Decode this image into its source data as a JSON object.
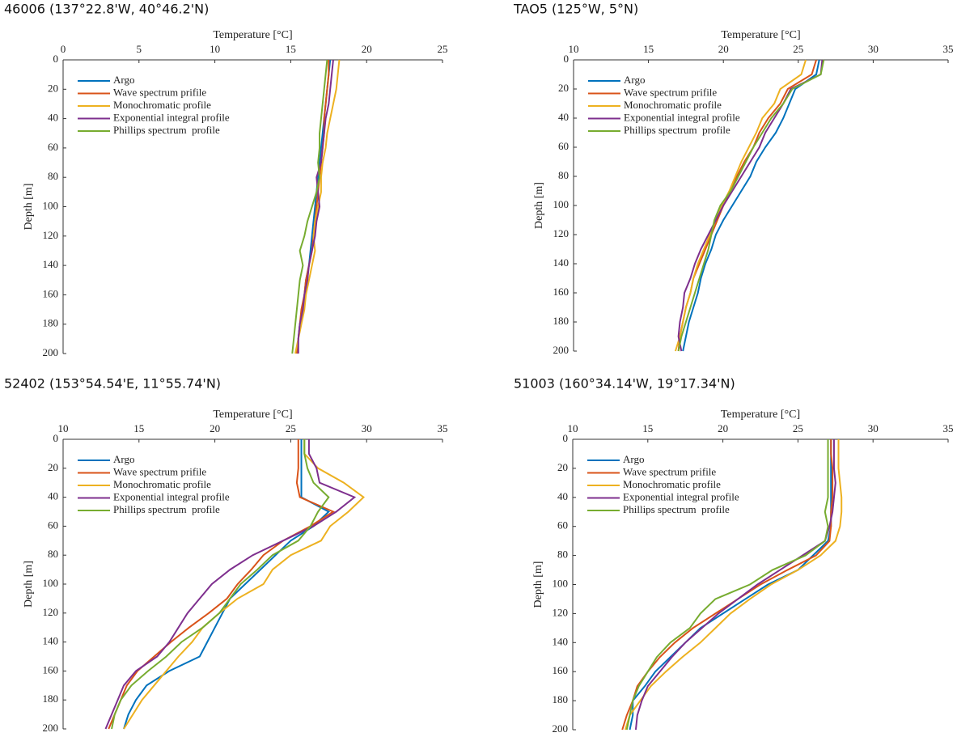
{
  "chart_data": [
    {
      "type": "line",
      "title": "46006 (137°22.8'W, 40°46.2'N)",
      "xlabel": "Temperature [°C]",
      "ylabel": "Depth [m]",
      "xlim": [
        0,
        25
      ],
      "xticks": [
        0,
        5,
        10,
        15,
        20,
        25
      ],
      "xaxis_position": "top",
      "ylim": [
        0,
        200
      ],
      "yticks": [
        0,
        20,
        40,
        60,
        80,
        100,
        120,
        140,
        160,
        180,
        200
      ],
      "y_inverted": true,
      "legend": "upper left",
      "y": [
        0,
        10,
        20,
        30,
        40,
        50,
        60,
        70,
        80,
        90,
        100,
        110,
        120,
        130,
        140,
        150,
        160,
        170,
        180,
        190,
        200
      ],
      "series": [
        {
          "name": "Argo",
          "color": "#0072bd",
          "values": [
            17.6,
            17.5,
            17.4,
            17.3,
            17.2,
            17.1,
            17.0,
            16.9,
            16.8,
            16.7,
            16.6,
            16.5,
            16.4,
            16.3,
            16.2,
            16.0,
            15.9,
            15.8,
            15.6,
            15.5,
            15.4
          ]
        },
        {
          "name": "Wave spectrum prifile",
          "color": "#d95319",
          "values": [
            17.5,
            17.5,
            17.4,
            17.3,
            17.2,
            17.2,
            17.1,
            17.0,
            16.9,
            16.8,
            16.7,
            16.6,
            16.5,
            16.4,
            16.2,
            16.0,
            15.9,
            15.7,
            15.6,
            15.5,
            15.4
          ]
        },
        {
          "name": "Monochromatic profile",
          "color": "#edb120",
          "values": [
            18.2,
            18.1,
            18.0,
            17.8,
            17.6,
            17.4,
            17.3,
            17.1,
            17.0,
            17.0,
            16.8,
            16.6,
            16.5,
            16.6,
            16.4,
            16.2,
            16.0,
            15.9,
            15.7,
            15.5,
            15.3
          ]
        },
        {
          "name": "Exponential integral profile",
          "color": "#7e2f8e",
          "values": [
            17.8,
            17.7,
            17.6,
            17.5,
            17.3,
            17.2,
            17.1,
            17.0,
            16.7,
            16.8,
            16.9,
            16.7,
            16.6,
            16.4,
            16.2,
            16.1,
            15.9,
            15.8,
            15.6,
            15.5,
            15.5
          ]
        },
        {
          "name": "Phillips spectrum  profile",
          "color": "#77ac30",
          "values": [
            17.4,
            17.3,
            17.2,
            17.1,
            17.0,
            16.9,
            16.9,
            16.8,
            16.9,
            16.7,
            16.4,
            16.1,
            15.9,
            15.6,
            15.8,
            15.6,
            15.5,
            15.4,
            15.3,
            15.2,
            15.1
          ]
        }
      ]
    },
    {
      "type": "line",
      "title": "TAO5 (125°W, 5°N)",
      "xlabel": "Temperature [°C]",
      "ylabel": "Depth [m]",
      "xlim": [
        10,
        35
      ],
      "xticks": [
        10,
        15,
        20,
        25,
        30,
        35
      ],
      "xaxis_position": "top",
      "ylim": [
        0,
        200
      ],
      "yticks": [
        0,
        20,
        40,
        60,
        80,
        100,
        120,
        140,
        160,
        180,
        200
      ],
      "y_inverted": true,
      "legend": "upper left",
      "y": [
        0,
        10,
        20,
        30,
        40,
        50,
        60,
        70,
        80,
        90,
        100,
        110,
        120,
        130,
        140,
        150,
        160,
        170,
        180,
        190,
        200
      ],
      "series": [
        {
          "name": "Argo",
          "color": "#0072bd",
          "values": [
            26.4,
            26.2,
            24.8,
            24.4,
            24.0,
            23.5,
            22.8,
            22.2,
            21.8,
            21.2,
            20.6,
            20.0,
            19.5,
            19.2,
            18.8,
            18.5,
            18.3,
            18.0,
            17.7,
            17.5,
            17.3
          ]
        },
        {
          "name": "Wave spectrum prifile",
          "color": "#d95319",
          "values": [
            26.2,
            25.9,
            24.3,
            23.8,
            23.0,
            22.4,
            22.0,
            21.4,
            20.9,
            20.5,
            20.0,
            19.6,
            19.2,
            18.8,
            18.4,
            18.0,
            17.8,
            17.5,
            17.3,
            17.1,
            17.0
          ]
        },
        {
          "name": "Monochromatic profile",
          "color": "#edb120",
          "values": [
            25.5,
            25.2,
            23.8,
            23.4,
            22.6,
            22.2,
            21.7,
            21.2,
            20.8,
            20.4,
            19.9,
            19.5,
            19.1,
            18.7,
            18.3,
            18.0,
            17.8,
            17.5,
            17.3,
            17.1,
            16.8
          ]
        },
        {
          "name": "Exponential integral profile",
          "color": "#7e2f8e",
          "values": [
            26.6,
            26.5,
            24.5,
            24.0,
            23.4,
            22.8,
            22.4,
            21.8,
            21.2,
            20.6,
            20.0,
            19.5,
            19.0,
            18.5,
            18.1,
            17.8,
            17.4,
            17.3,
            17.1,
            17.0,
            17.2
          ]
        },
        {
          "name": "Phillips spectrum  profile",
          "color": "#77ac30",
          "values": [
            26.7,
            26.5,
            24.6,
            24.0,
            23.2,
            22.6,
            22.0,
            21.5,
            21.0,
            20.5,
            19.8,
            19.4,
            19.2,
            19.0,
            18.7,
            18.4,
            18.1,
            17.8,
            17.5,
            17.2,
            17.0
          ]
        }
      ]
    },
    {
      "type": "line",
      "title": "52402 (153°54.54'E, 11°55.74'N)",
      "xlabel": "Temperature [°C]",
      "ylabel": "Depth [m]",
      "xlim": [
        10,
        35
      ],
      "xticks": [
        10,
        15,
        20,
        25,
        30,
        35
      ],
      "xaxis_position": "top",
      "ylim": [
        0,
        200
      ],
      "yticks": [
        0,
        20,
        40,
        60,
        80,
        100,
        120,
        140,
        160,
        180,
        200
      ],
      "y_inverted": true,
      "legend": "upper left",
      "y": [
        0,
        10,
        20,
        30,
        40,
        50,
        60,
        70,
        80,
        90,
        100,
        110,
        120,
        130,
        140,
        150,
        160,
        170,
        180,
        190,
        200
      ],
      "series": [
        {
          "name": "Argo",
          "color": "#0072bd",
          "values": [
            25.7,
            25.7,
            25.7,
            25.7,
            25.7,
            27.5,
            26.5,
            25.0,
            24.0,
            23.0,
            22.0,
            21.0,
            20.5,
            20.0,
            19.5,
            19.0,
            17.0,
            15.5,
            14.8,
            14.3,
            14.0
          ]
        },
        {
          "name": "Wave spectrum prifile",
          "color": "#d95319",
          "values": [
            25.5,
            25.5,
            25.5,
            25.4,
            25.6,
            27.8,
            26.3,
            24.5,
            23.2,
            22.4,
            21.5,
            20.8,
            19.6,
            18.3,
            17.1,
            16.0,
            14.9,
            14.2,
            13.8,
            13.4,
            13.0
          ]
        },
        {
          "name": "Monochromatic profile",
          "color": "#edb120",
          "values": [
            25.9,
            25.9,
            26.8,
            28.5,
            29.8,
            28.8,
            27.6,
            27.0,
            25.0,
            23.8,
            23.2,
            21.5,
            20.3,
            19.2,
            18.5,
            17.6,
            16.8,
            16.0,
            15.2,
            14.6,
            14.0
          ]
        },
        {
          "name": "Exponential integral profile",
          "color": "#7e2f8e",
          "values": [
            26.2,
            26.2,
            26.7,
            26.9,
            29.2,
            28.0,
            26.5,
            24.5,
            22.5,
            21.0,
            19.8,
            19.0,
            18.2,
            17.6,
            17.0,
            16.2,
            14.8,
            14.0,
            13.6,
            13.2,
            12.8
          ]
        },
        {
          "name": "Phillips spectrum  profile",
          "color": "#77ac30",
          "values": [
            25.9,
            25.9,
            26.1,
            26.5,
            27.5,
            26.8,
            26.3,
            25.5,
            23.8,
            22.8,
            21.7,
            21.0,
            20.3,
            19.2,
            17.8,
            16.8,
            15.6,
            14.5,
            13.8,
            13.4,
            13.2
          ]
        }
      ]
    },
    {
      "type": "line",
      "title": "51003 (160°34.14'W, 19°17.34'N)",
      "xlabel": "Temperature [°C]",
      "ylabel": "Depth [m]",
      "xlim": [
        10,
        35
      ],
      "xticks": [
        10,
        15,
        20,
        25,
        30,
        35
      ],
      "xaxis_position": "top",
      "ylim": [
        0,
        200
      ],
      "yticks": [
        0,
        20,
        40,
        60,
        80,
        100,
        120,
        140,
        160,
        180,
        200
      ],
      "y_inverted": true,
      "legend": "upper left",
      "y": [
        0,
        10,
        20,
        30,
        40,
        50,
        60,
        70,
        80,
        90,
        100,
        110,
        120,
        130,
        140,
        150,
        160,
        170,
        180,
        190,
        200
      ],
      "series": [
        {
          "name": "Argo",
          "color": "#0072bd",
          "values": [
            27.2,
            27.2,
            27.2,
            27.2,
            27.2,
            27.2,
            27.2,
            27.0,
            26.0,
            25.0,
            23.0,
            21.5,
            20.0,
            18.5,
            17.5,
            16.5,
            15.5,
            14.8,
            14.0,
            14.0,
            13.8
          ]
        },
        {
          "name": "Wave spectrum prifile",
          "color": "#d95319",
          "values": [
            27.2,
            27.2,
            27.3,
            27.3,
            27.3,
            27.2,
            27.2,
            27.1,
            26.2,
            24.3,
            22.5,
            21.0,
            19.5,
            18.0,
            16.8,
            15.8,
            15.0,
            14.3,
            14.0,
            13.6,
            13.3
          ]
        },
        {
          "name": "Monochromatic profile",
          "color": "#edb120",
          "values": [
            27.7,
            27.7,
            27.7,
            27.8,
            27.9,
            27.9,
            27.8,
            27.5,
            26.5,
            25.0,
            23.2,
            21.8,
            20.5,
            19.5,
            18.5,
            17.3,
            16.2,
            15.2,
            14.5,
            13.8,
            13.5
          ]
        },
        {
          "name": "Exponential integral profile",
          "color": "#7e2f8e",
          "values": [
            27.4,
            27.4,
            27.4,
            27.5,
            27.4,
            27.3,
            27.1,
            26.8,
            25.3,
            23.8,
            22.3,
            21.0,
            19.7,
            18.6,
            17.5,
            16.6,
            15.8,
            15.0,
            14.6,
            14.3,
            14.2
          ]
        },
        {
          "name": "Phillips spectrum  profile",
          "color": "#77ac30",
          "values": [
            27.0,
            27.0,
            27.0,
            27.0,
            27.0,
            26.8,
            27.0,
            26.8,
            25.5,
            23.3,
            21.8,
            19.5,
            18.5,
            17.8,
            16.5,
            15.6,
            15.0,
            14.4,
            14.0,
            13.8,
            13.6
          ]
        }
      ]
    }
  ]
}
